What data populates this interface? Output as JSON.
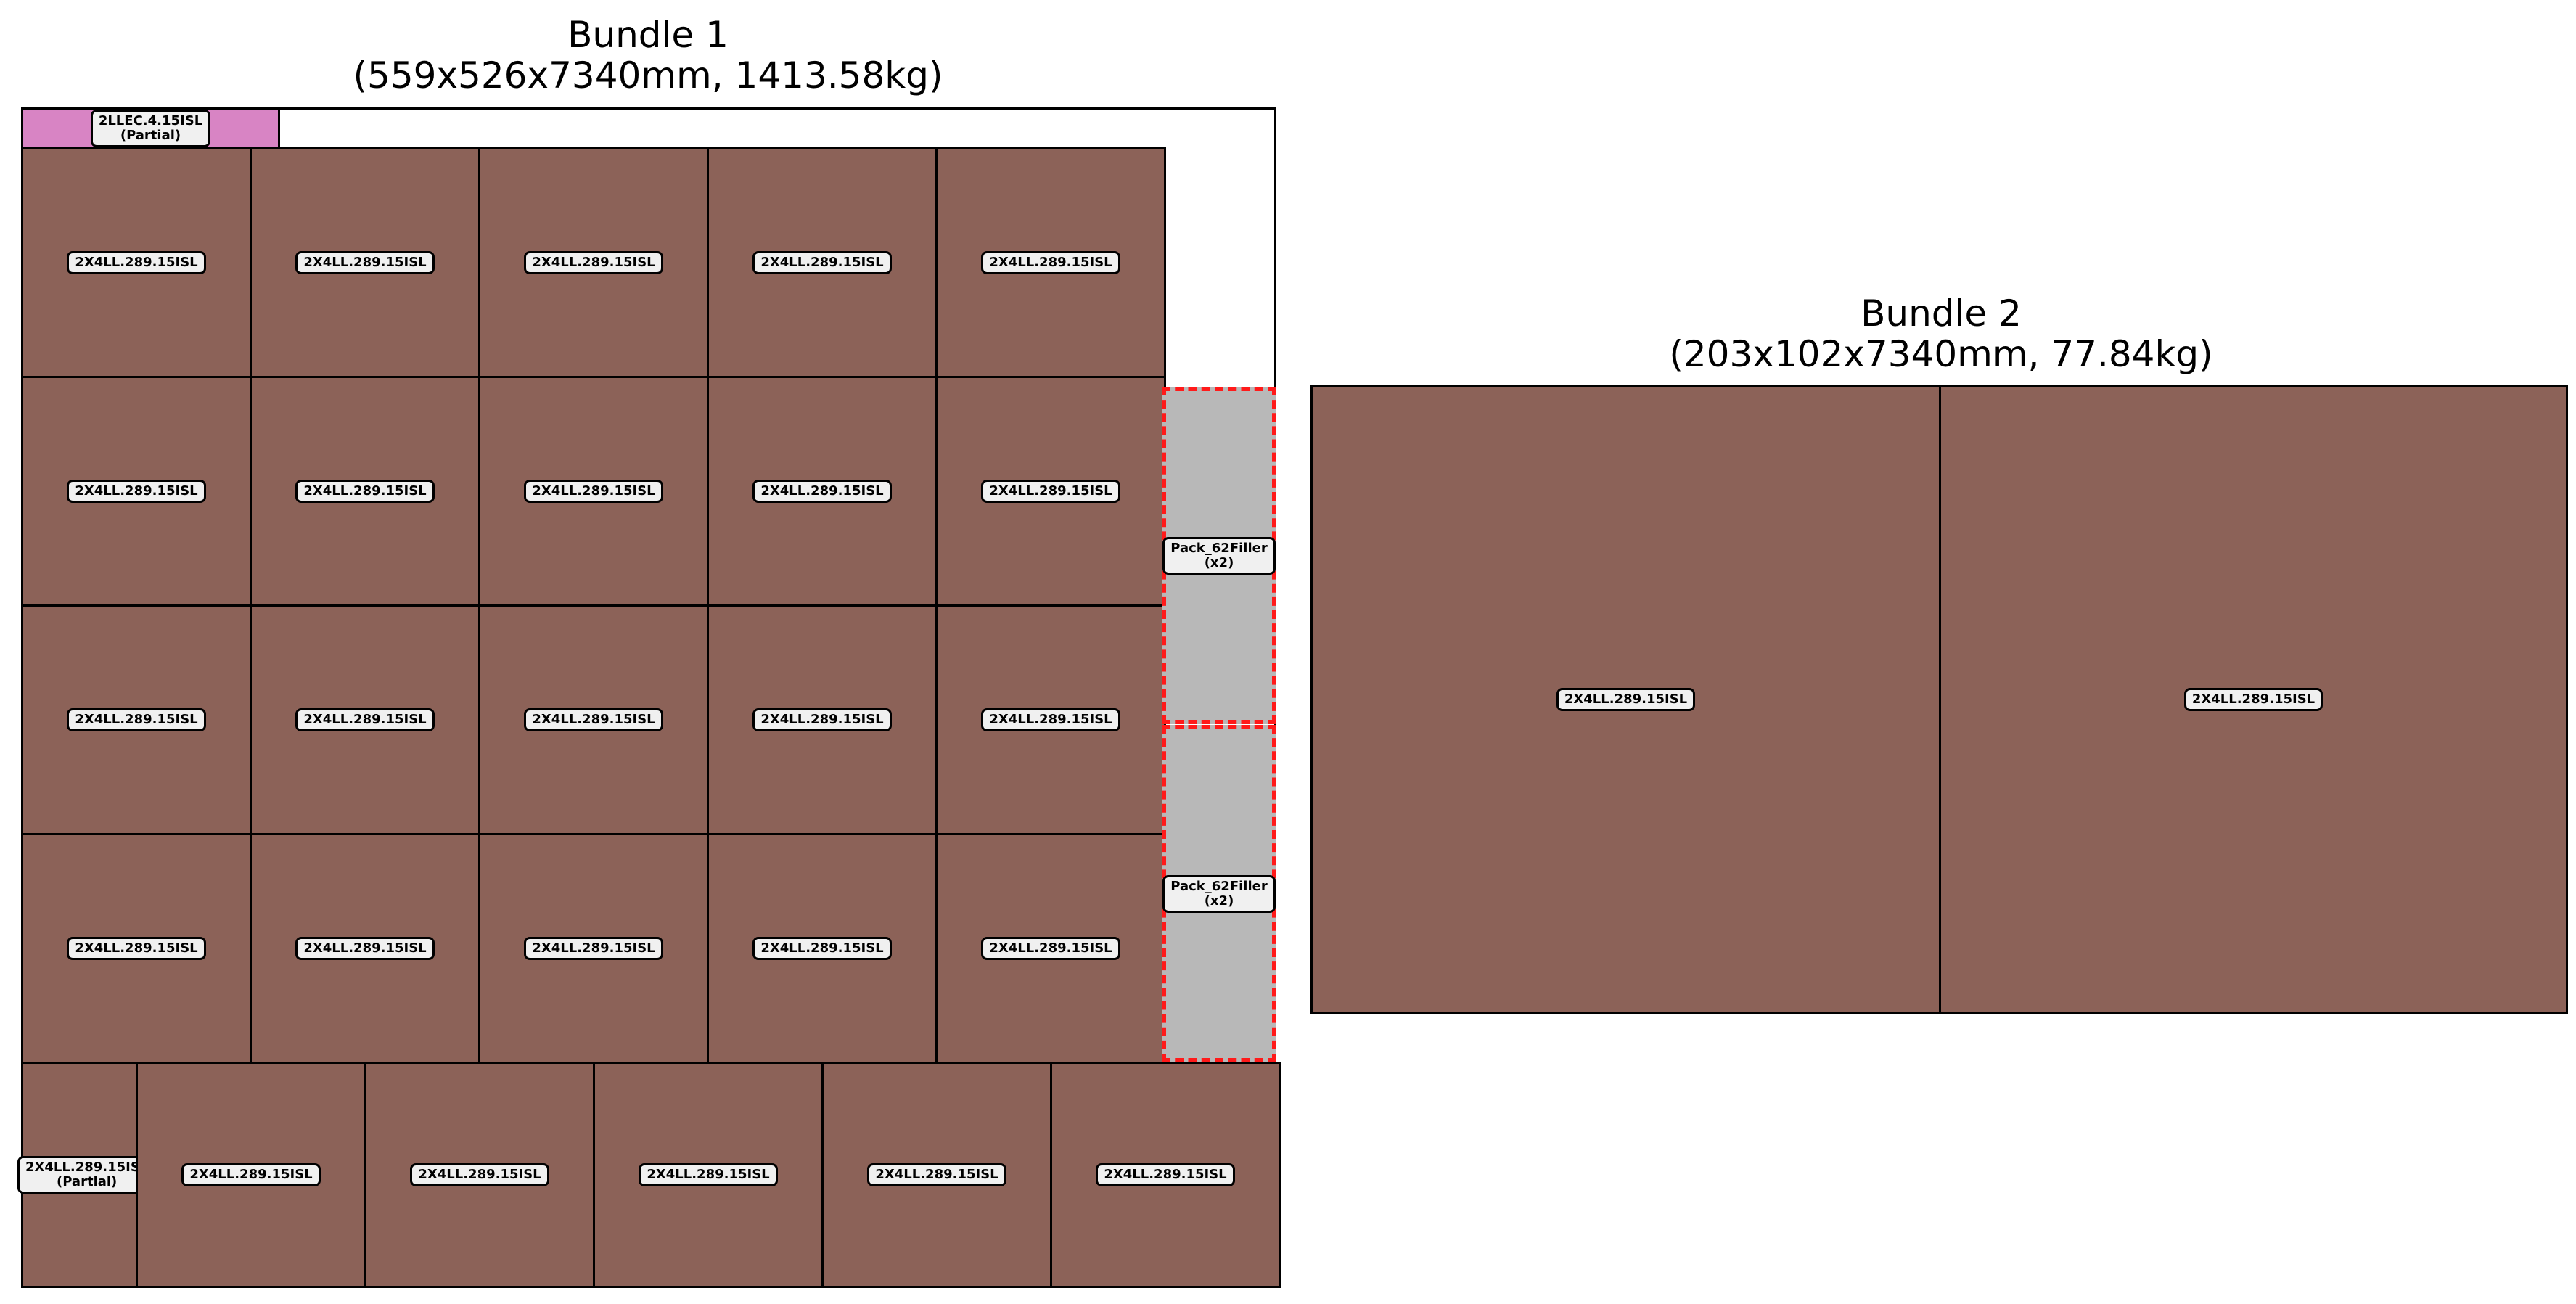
{
  "colors": {
    "lumber": "#8c6258",
    "partial_top": "#d884c4",
    "filler": "#b8b8b8",
    "filler_border": "#ff1a1a",
    "outline": "#000000",
    "label_bg": "#f0f0f0"
  },
  "bundles": [
    {
      "title": "Bundle 1",
      "subtitle": "(559x526x7340mm, 1413.58kg)"
    },
    {
      "title": "Bundle 2",
      "subtitle": "(203x102x7340mm, 77.84kg)"
    }
  ],
  "pieces": {
    "lumber_label": "2X4LL.289.15ISL",
    "partial_note": "(Partial)",
    "top_partial_label": "2LLEC.4.15ISL",
    "filler_label": "Pack_62Filler",
    "filler_note": "(x2)"
  },
  "layout_counts": {
    "bundle1_full_rows": 4,
    "bundle1_cols": 5,
    "bundle1_bottom_full": 5,
    "bundle1_bottom_partial": 1,
    "bundle1_top_partial": 1,
    "bundle1_fillers": 2,
    "bundle2_pieces": 2
  }
}
